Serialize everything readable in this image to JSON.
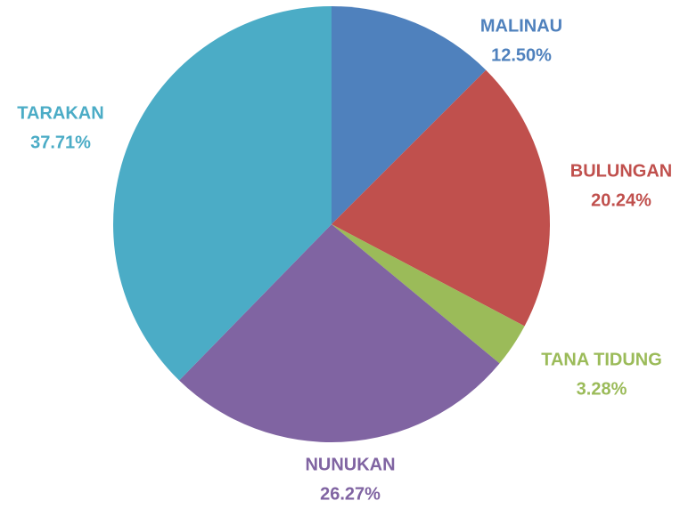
{
  "chart_data": {
    "type": "pie",
    "categories": [
      "MALINAU",
      "BULUNGAN",
      "TANA TIDUNG",
      "NUNUKAN",
      "TARAKAN"
    ],
    "values": [
      12.5,
      20.24,
      3.28,
      26.27,
      37.71
    ],
    "value_labels": [
      "12.50%",
      "20.24%",
      "3.28%",
      "26.27%",
      "37.71%"
    ],
    "colors": [
      "#4f81bd",
      "#c0504d",
      "#9bbb59",
      "#8064a2",
      "#4bacc6"
    ]
  }
}
